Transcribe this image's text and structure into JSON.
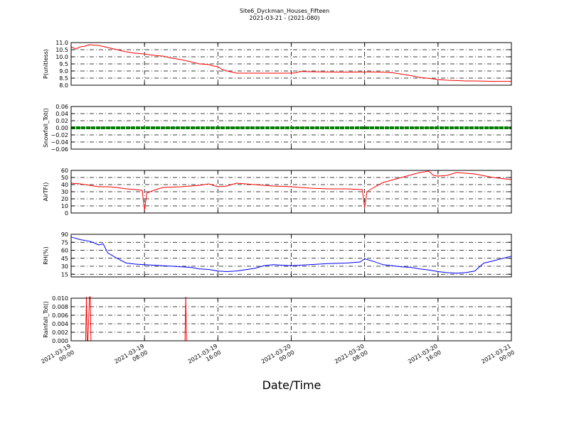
{
  "figure": {
    "title_line1": "Site6_Dyckman_Houses_Fifteen",
    "title_line2": "2021-03-21 - (2021-080)",
    "xlabel": "Date/Time"
  },
  "chart_data": [
    {
      "type": "line",
      "ylabel": "P(unitless)",
      "ylim": [
        8.0,
        11.0
      ],
      "yticks": [
        "8.0",
        "8.5",
        "9.0",
        "9.5",
        "10.0",
        "10.5",
        "11.0"
      ],
      "grid": true,
      "color": "#ff0000",
      "xlim": [
        "2021-03-19 00:00",
        "2021-03-21 00:00"
      ],
      "series": [
        {
          "x": [
            "2021-03-19 00:00",
            "2021-03-19 00:30",
            "2021-03-19 01:00",
            "2021-03-19 01:30",
            "2021-03-19 02:00",
            "2021-03-19 03:00",
            "2021-03-19 04:00",
            "2021-03-19 05:00",
            "2021-03-19 06:00",
            "2021-03-19 07:00",
            "2021-03-19 08:00",
            "2021-03-19 09:00",
            "2021-03-19 10:00",
            "2021-03-19 11:00",
            "2021-03-19 12:00",
            "2021-03-19 13:00",
            "2021-03-19 14:00",
            "2021-03-19 15:00",
            "2021-03-19 15:30",
            "2021-03-19 16:00",
            "2021-03-19 16:30",
            "2021-03-19 17:00",
            "2021-03-19 18:00",
            "2021-03-19 20:00",
            "2021-03-19 22:00",
            "2021-03-20 00:00",
            "2021-03-20 00:30",
            "2021-03-20 01:00",
            "2021-03-20 02:00",
            "2021-03-20 04:00",
            "2021-03-20 06:00",
            "2021-03-20 08:00",
            "2021-03-20 09:00",
            "2021-03-20 10:00",
            "2021-03-20 11:00",
            "2021-03-20 12:00",
            "2021-03-20 13:00",
            "2021-03-20 14:00",
            "2021-03-20 15:00",
            "2021-03-20 16:00",
            "2021-03-20 17:00",
            "2021-03-20 18:00",
            "2021-03-20 19:00",
            "2021-03-20 20:00",
            "2021-03-20 22:00",
            "2021-03-21 00:00"
          ],
          "y": [
            10.7,
            10.55,
            10.7,
            10.75,
            10.85,
            10.8,
            10.65,
            10.5,
            10.35,
            10.25,
            10.2,
            10.1,
            10.05,
            9.9,
            9.8,
            9.65,
            9.5,
            9.45,
            9.35,
            9.3,
            9.1,
            9.0,
            8.85,
            8.85,
            8.85,
            8.85,
            8.87,
            8.97,
            8.95,
            8.93,
            8.92,
            8.93,
            8.93,
            8.92,
            8.88,
            8.78,
            8.68,
            8.55,
            8.48,
            8.4,
            8.35,
            8.33,
            8.3,
            8.3,
            8.27,
            8.27
          ]
        }
      ]
    },
    {
      "type": "line",
      "ylabel": "Snowfall_Tot()",
      "ylim": [
        -0.06,
        0.06
      ],
      "yticks": [
        "−0.06",
        "−0.04",
        "−0.02",
        "0.00",
        "0.02",
        "0.04",
        "0.06"
      ],
      "grid": true,
      "color": "#008000",
      "xlim": [
        "2021-03-19 00:00",
        "2021-03-21 00:00"
      ],
      "series": [
        {
          "x": [
            "2021-03-19 00:00",
            "2021-03-21 00:00"
          ],
          "y": [
            0.0,
            0.0
          ]
        }
      ]
    },
    {
      "type": "line",
      "ylabel": "AirTF()",
      "ylim": [
        0,
        60
      ],
      "yticks": [
        "0",
        "10",
        "20",
        "30",
        "40",
        "50",
        "60"
      ],
      "grid": true,
      "color": "#ff0000",
      "xlim": [
        "2021-03-19 00:00",
        "2021-03-21 00:00"
      ],
      "series": [
        {
          "x": [
            "2021-03-19 00:00",
            "2021-03-19 01:00",
            "2021-03-19 02:00",
            "2021-03-19 03:00",
            "2021-03-19 04:00",
            "2021-03-19 05:00",
            "2021-03-19 06:00",
            "2021-03-19 07:00",
            "2021-03-19 07:45",
            "2021-03-19 08:00",
            "2021-03-19 08:15",
            "2021-03-19 09:00",
            "2021-03-19 10:00",
            "2021-03-19 12:00",
            "2021-03-19 14:00",
            "2021-03-19 15:00",
            "2021-03-19 16:00",
            "2021-03-19 17:00",
            "2021-03-19 18:00",
            "2021-03-19 20:00",
            "2021-03-19 22:00",
            "2021-03-20 00:00",
            "2021-03-20 02:00",
            "2021-03-20 04:00",
            "2021-03-20 06:00",
            "2021-03-20 07:45",
            "2021-03-20 08:00",
            "2021-03-20 08:15",
            "2021-03-20 09:00",
            "2021-03-20 10:00",
            "2021-03-20 12:00",
            "2021-03-20 14:00",
            "2021-03-20 15:00",
            "2021-03-20 15:30",
            "2021-03-20 16:00",
            "2021-03-20 17:00",
            "2021-03-20 18:00",
            "2021-03-20 20:00",
            "2021-03-20 22:00",
            "2021-03-21 00:00"
          ],
          "y": [
            42,
            41,
            39,
            37,
            37,
            36,
            34,
            33,
            32,
            4,
            28,
            32,
            36,
            37,
            39,
            41,
            37,
            38,
            42,
            40,
            38,
            37,
            35,
            34,
            34,
            33,
            8,
            30,
            36,
            43,
            50,
            57,
            59,
            53,
            52,
            53,
            57,
            55,
            50,
            47
          ]
        }
      ]
    },
    {
      "type": "line",
      "ylabel": "RH(%)",
      "ylim": [
        10,
        90
      ],
      "yticks": [
        "15",
        "30",
        "45",
        "60",
        "75",
        "90"
      ],
      "grid": true,
      "color": "#0000ff",
      "xlim": [
        "2021-03-19 00:00",
        "2021-03-21 00:00"
      ],
      "series": [
        {
          "x": [
            "2021-03-19 00:00",
            "2021-03-19 01:00",
            "2021-03-19 02:00",
            "2021-03-19 02:30",
            "2021-03-19 03:00",
            "2021-03-19 03:30",
            "2021-03-19 04:00",
            "2021-03-19 05:00",
            "2021-03-19 06:00",
            "2021-03-19 07:00",
            "2021-03-19 08:00",
            "2021-03-19 09:00",
            "2021-03-19 10:00",
            "2021-03-19 11:00",
            "2021-03-19 12:00",
            "2021-03-19 13:00",
            "2021-03-19 14:00",
            "2021-03-19 15:00",
            "2021-03-19 16:00",
            "2021-03-19 17:00",
            "2021-03-19 18:00",
            "2021-03-19 20:00",
            "2021-03-19 21:00",
            "2021-03-19 22:00",
            "2021-03-20 00:00",
            "2021-03-20 02:00",
            "2021-03-20 04:00",
            "2021-03-20 06:00",
            "2021-03-20 07:30",
            "2021-03-20 08:00",
            "2021-03-20 09:00",
            "2021-03-20 10:00",
            "2021-03-20 11:00",
            "2021-03-20 12:00",
            "2021-03-20 13:00",
            "2021-03-20 14:00",
            "2021-03-20 15:00",
            "2021-03-20 16:00",
            "2021-03-20 17:00",
            "2021-03-20 18:00",
            "2021-03-20 19:00",
            "2021-03-20 20:00",
            "2021-03-20 21:00",
            "2021-03-20 22:00",
            "2021-03-21 00:00"
          ],
          "y": [
            85,
            80,
            77,
            74,
            70,
            72,
            55,
            45,
            36,
            34,
            33,
            32,
            31,
            30,
            29,
            28,
            25,
            24,
            21,
            20,
            21,
            26,
            31,
            33,
            31,
            33,
            35,
            36,
            38,
            44,
            39,
            33,
            31,
            29,
            28,
            25,
            23,
            20,
            18,
            17,
            18,
            21,
            36,
            40,
            49
          ]
        }
      ]
    },
    {
      "type": "line",
      "ylabel": "Rainfall_Tot()",
      "ylim": [
        0.0,
        0.01
      ],
      "yticks": [
        "0.000",
        "0.002",
        "0.004",
        "0.006",
        "0.008",
        "0.010"
      ],
      "grid": true,
      "color": "#ff0000",
      "xlim": [
        "2021-03-19 00:00",
        "2021-03-21 00:00"
      ],
      "series": [
        {
          "x": [
            "2021-03-19 00:00",
            "2021-03-19 01:35",
            "2021-03-19 01:40",
            "2021-03-19 01:45",
            "2021-03-19 01:50",
            "2021-03-19 02:00",
            "2021-03-19 02:05",
            "2021-03-19 02:10",
            "2021-03-19 12:25",
            "2021-03-19 12:30",
            "2021-03-19 12:35",
            "2021-03-21 00:00"
          ],
          "y": [
            0,
            0,
            0.011,
            0,
            0,
            0.011,
            0.011,
            0,
            0,
            0.011,
            0,
            0
          ]
        }
      ]
    }
  ],
  "xticks": [
    {
      "line1": "2021-03-19",
      "line2": "00:00"
    },
    {
      "line1": "2021-03-19",
      "line2": "08:00"
    },
    {
      "line1": "2021-03-19",
      "line2": "16:00"
    },
    {
      "line1": "2021-03-20",
      "line2": "00:00"
    },
    {
      "line1": "2021-03-20",
      "line2": "08:00"
    },
    {
      "line1": "2021-03-20",
      "line2": "16:00"
    },
    {
      "line1": "2021-03-21",
      "line2": "00:00"
    }
  ]
}
